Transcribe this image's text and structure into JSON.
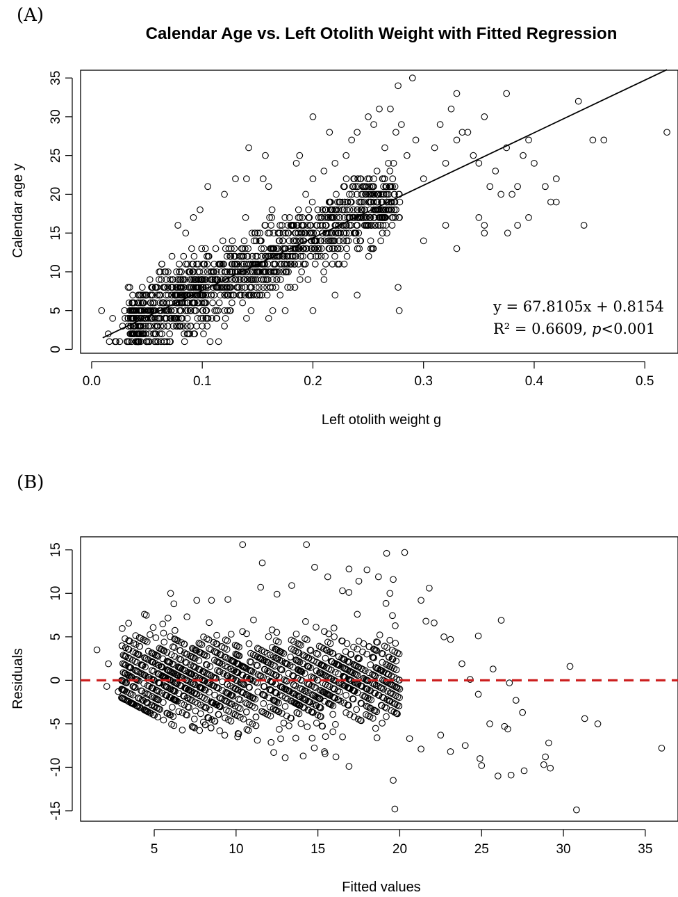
{
  "panels": [
    {
      "label": "(A)"
    },
    {
      "label": "(B)"
    }
  ],
  "chart_data": [
    {
      "type": "scatter",
      "title": "Calendar Age vs. Left Otolith Weight with Fitted Regression",
      "xlabel": "Left otolith weight g",
      "ylabel": "Calendar age y",
      "xlim": [
        -0.01,
        0.53
      ],
      "ylim": [
        -0.5,
        36
      ],
      "xticks": [
        0.0,
        0.1,
        0.2,
        0.3,
        0.4,
        0.5
      ],
      "xtick_labels": [
        "0.0",
        "0.1",
        "0.2",
        "0.3",
        "0.4",
        "0.5"
      ],
      "yticks": [
        0,
        5,
        10,
        15,
        20,
        25,
        30,
        35
      ],
      "ytick_labels": [
        "0",
        "5",
        "10",
        "15",
        "20",
        "25",
        "30",
        "35"
      ],
      "grid": false,
      "regression": {
        "slope": 67.8105,
        "intercept": 0.8154,
        "x_range": [
          0.01,
          0.52
        ]
      },
      "annotation_lines": [
        "y = 67.8105x + 0.8154",
        "R² = 0.6609, p<0.001"
      ],
      "point_color": "#000000",
      "points": [
        [
          0.009,
          5
        ],
        [
          0.015,
          2
        ],
        [
          0.016,
          1
        ],
        [
          0.019,
          4
        ],
        [
          0.022,
          1
        ],
        [
          0.028,
          3
        ],
        [
          0.043,
          7
        ],
        [
          0.055,
          8
        ],
        [
          0.062,
          10
        ],
        [
          0.078,
          16
        ],
        [
          0.085,
          15
        ],
        [
          0.092,
          17
        ],
        [
          0.098,
          18
        ],
        [
          0.105,
          21
        ],
        [
          0.12,
          20
        ],
        [
          0.13,
          22
        ],
        [
          0.14,
          22
        ],
        [
          0.142,
          26
        ],
        [
          0.155,
          22
        ],
        [
          0.157,
          25
        ],
        [
          0.16,
          21
        ],
        [
          0.185,
          24
        ],
        [
          0.188,
          25
        ],
        [
          0.2,
          22
        ],
        [
          0.2,
          30
        ],
        [
          0.21,
          23
        ],
        [
          0.215,
          28
        ],
        [
          0.22,
          24
        ],
        [
          0.23,
          25
        ],
        [
          0.235,
          27
        ],
        [
          0.24,
          28
        ],
        [
          0.245,
          21
        ],
        [
          0.25,
          30
        ],
        [
          0.255,
          29
        ],
        [
          0.26,
          31
        ],
        [
          0.265,
          26
        ],
        [
          0.27,
          31
        ],
        [
          0.275,
          28
        ],
        [
          0.277,
          34
        ],
        [
          0.28,
          29
        ],
        [
          0.285,
          25
        ],
        [
          0.29,
          35
        ],
        [
          0.293,
          27
        ],
        [
          0.3,
          22
        ],
        [
          0.31,
          26
        ],
        [
          0.315,
          29
        ],
        [
          0.32,
          24
        ],
        [
          0.325,
          31
        ],
        [
          0.33,
          27
        ],
        [
          0.33,
          33
        ],
        [
          0.335,
          28
        ],
        [
          0.34,
          28
        ],
        [
          0.345,
          25
        ],
        [
          0.35,
          24
        ],
        [
          0.355,
          30
        ],
        [
          0.36,
          21
        ],
        [
          0.365,
          23
        ],
        [
          0.37,
          20
        ],
        [
          0.375,
          26
        ],
        [
          0.375,
          33
        ],
        [
          0.38,
          20
        ],
        [
          0.385,
          21
        ],
        [
          0.39,
          25
        ],
        [
          0.395,
          27
        ],
        [
          0.4,
          24
        ],
        [
          0.41,
          21
        ],
        [
          0.415,
          19
        ],
        [
          0.42,
          19
        ],
        [
          0.42,
          22
        ],
        [
          0.44,
          32
        ],
        [
          0.445,
          16
        ],
        [
          0.453,
          27
        ],
        [
          0.463,
          27
        ],
        [
          0.52,
          28
        ],
        [
          0.277,
          8
        ],
        [
          0.278,
          5
        ],
        [
          0.35,
          17
        ],
        [
          0.355,
          16
        ],
        [
          0.355,
          15
        ],
        [
          0.376,
          15
        ],
        [
          0.385,
          16
        ],
        [
          0.395,
          17
        ],
        [
          0.33,
          13
        ],
        [
          0.2,
          5
        ],
        [
          0.22,
          7
        ],
        [
          0.16,
          4
        ],
        [
          0.14,
          4
        ],
        [
          0.12,
          3
        ],
        [
          0.1,
          3
        ],
        [
          0.24,
          7
        ],
        [
          0.3,
          14
        ],
        [
          0.32,
          16
        ]
      ]
    },
    {
      "type": "scatter",
      "title": "",
      "xlabel": "Fitted values",
      "ylabel": "Residuals",
      "xlim": [
        0.5,
        37
      ],
      "ylim": [
        -16.2,
        16.5
      ],
      "xticks": [
        5,
        10,
        15,
        20,
        25,
        30,
        35
      ],
      "xtick_labels": [
        "5",
        "10",
        "15",
        "20",
        "25",
        "30",
        "35"
      ],
      "yticks": [
        -15,
        -10,
        -5,
        0,
        5,
        10,
        15
      ],
      "ytick_labels": [
        "-15",
        "-10",
        "-5",
        "0",
        "5",
        "10",
        "15"
      ],
      "grid": false,
      "reference_line": {
        "y": 0,
        "color": "#cc1f1f",
        "style": "dashed"
      },
      "point_color": "#000000",
      "points": [
        [
          1.5,
          3.5
        ],
        [
          2.2,
          1.9
        ],
        [
          3.7,
          3.3
        ],
        [
          5.1,
          4.9
        ],
        [
          6.0,
          10
        ],
        [
          6.2,
          8.8
        ],
        [
          7.0,
          7.3
        ],
        [
          7.6,
          9.2
        ],
        [
          8.5,
          9.2
        ],
        [
          9.5,
          9.3
        ],
        [
          10.4,
          15.6
        ],
        [
          11.5,
          10.7
        ],
        [
          11.6,
          13.5
        ],
        [
          12.5,
          9.9
        ],
        [
          13.4,
          10.9
        ],
        [
          14.3,
          15.6
        ],
        [
          14.8,
          13
        ],
        [
          15.6,
          11.9
        ],
        [
          16.5,
          10.3
        ],
        [
          16.9,
          12.8
        ],
        [
          17.5,
          11.4
        ],
        [
          18,
          12.7
        ],
        [
          18.7,
          11.9
        ],
        [
          19.2,
          14.6
        ],
        [
          20.3,
          14.7
        ],
        [
          19.6,
          11.6
        ],
        [
          19.4,
          10
        ],
        [
          21.3,
          9.2
        ],
        [
          21.8,
          10.6
        ],
        [
          21.6,
          6.8
        ],
        [
          22.1,
          6.6
        ],
        [
          22.7,
          5.0
        ],
        [
          23.1,
          4.7
        ],
        [
          23.8,
          1.9
        ],
        [
          24.3,
          0.1
        ],
        [
          24.8,
          5.1
        ],
        [
          25.7,
          1.3
        ],
        [
          26.2,
          6.9
        ],
        [
          26.7,
          -0.3
        ],
        [
          27.1,
          -2.3
        ],
        [
          27.5,
          -3.7
        ],
        [
          28.8,
          -9.7
        ],
        [
          29.2,
          -10.1
        ],
        [
          29.1,
          -7.2
        ],
        [
          30.4,
          1.6
        ],
        [
          31.3,
          -4.4
        ],
        [
          32.1,
          -5
        ],
        [
          36.0,
          -7.8
        ],
        [
          30.8,
          -14.9
        ],
        [
          19.6,
          -11.5
        ],
        [
          19.7,
          -14.8
        ],
        [
          22.5,
          -6.3
        ],
        [
          23.1,
          -8.2
        ],
        [
          24.0,
          -7.5
        ],
        [
          24.9,
          -9.0
        ],
        [
          25.0,
          -9.8
        ],
        [
          26.0,
          -11.0
        ],
        [
          26.8,
          -10.9
        ],
        [
          27.6,
          -10.4
        ],
        [
          28.9,
          -8.8
        ],
        [
          25.5,
          -5.0
        ],
        [
          26.4,
          -5.3
        ],
        [
          26.6,
          -5.6
        ],
        [
          24.8,
          -1.6
        ],
        [
          16.9,
          -9.9
        ],
        [
          14.1,
          -8.7
        ],
        [
          13.0,
          -8.9
        ],
        [
          12.3,
          -8.3
        ],
        [
          15.4,
          -8.2
        ],
        [
          16.1,
          -8.8
        ],
        [
          10.1,
          -6.5
        ],
        [
          11.3,
          -6.9
        ],
        [
          9.0,
          -5.8
        ],
        [
          8.0,
          -4.8
        ],
        [
          2.8,
          -1.3
        ],
        [
          2.1,
          -0.7
        ],
        [
          3.5,
          0.3
        ],
        [
          4.5,
          -2.1
        ],
        [
          6.5,
          -3.6
        ],
        [
          20.6,
          -6.7
        ],
        [
          21.3,
          -7.9
        ]
      ]
    }
  ]
}
